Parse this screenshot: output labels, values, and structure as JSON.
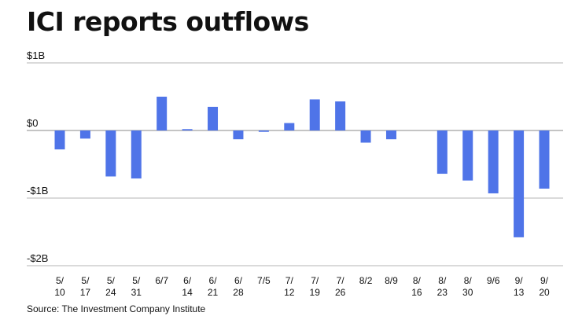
{
  "title": "ICI reports outflows",
  "source": "Source: The Investment Company Institute",
  "chart_data": {
    "type": "bar",
    "title": "ICI reports outflows",
    "xlabel": "",
    "ylabel": "",
    "ylim": [
      -2,
      1
    ],
    "yticks": [
      {
        "value": 1,
        "label": "$1B"
      },
      {
        "value": 0,
        "label": "$0"
      },
      {
        "value": -1,
        "label": "-$1B"
      },
      {
        "value": -2,
        "label": "-$2B"
      }
    ],
    "grid": true,
    "legend": "none",
    "bar_color": "#4f74e8",
    "categories": [
      [
        "5/",
        "10"
      ],
      [
        "5/",
        "17"
      ],
      [
        "5/",
        "24"
      ],
      [
        "5/",
        "31"
      ],
      [
        "6/7"
      ],
      [
        "6/",
        "14"
      ],
      [
        "6/",
        "21"
      ],
      [
        "6/",
        "28"
      ],
      [
        "7/5"
      ],
      [
        "7/",
        "12"
      ],
      [
        "7/",
        "19"
      ],
      [
        "7/",
        "26"
      ],
      [
        "8/2"
      ],
      [
        "8/9"
      ],
      [
        "8/",
        "16"
      ],
      [
        "8/",
        "23"
      ],
      [
        "8/",
        "30"
      ],
      [
        "9/6"
      ],
      [
        "9/",
        "13"
      ],
      [
        "9/",
        "20"
      ]
    ],
    "values": [
      -0.28,
      -0.12,
      -0.68,
      -0.71,
      0.5,
      0.02,
      0.35,
      -0.13,
      -0.02,
      0.11,
      0.46,
      0.43,
      -0.18,
      -0.13,
      0,
      -0.64,
      -0.74,
      -0.93,
      -1.58,
      -0.86
    ]
  }
}
